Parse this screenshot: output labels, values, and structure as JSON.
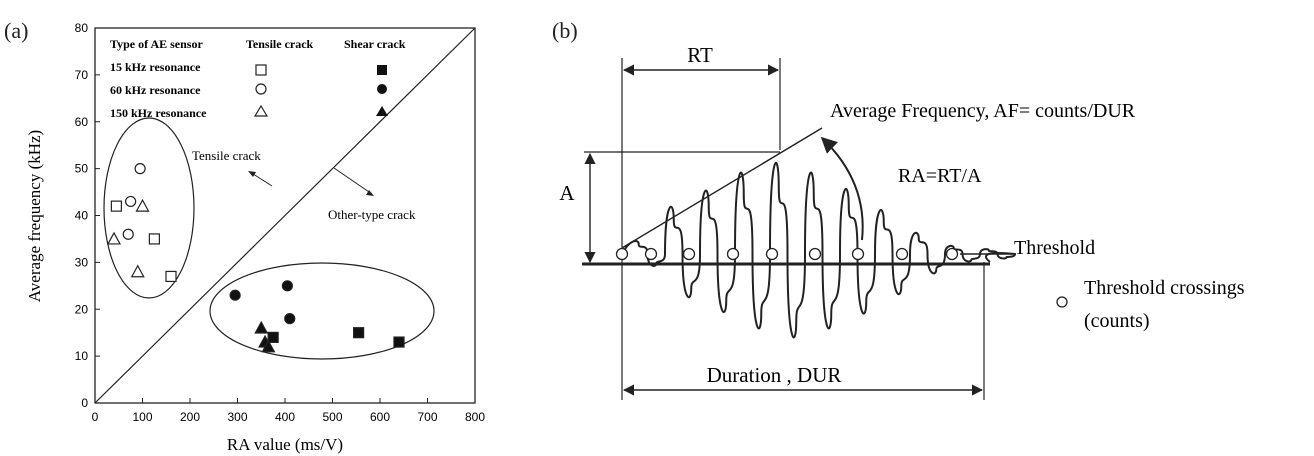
{
  "panel_a": {
    "label": "(a)",
    "legend": {
      "header_sensor": "Type of AE sensor",
      "header_tensile": "Tensile crack",
      "header_shear": "Shear crack",
      "rows": [
        "15 kHz resonance",
        "60 kHz resonance",
        "150 kHz resonance"
      ]
    },
    "annotations": {
      "tensile": "Tensile crack",
      "other": "Other-type crack"
    }
  },
  "panel_b": {
    "label": "(b)",
    "rt": "RT",
    "a": "A",
    "af": "Average Frequency, AF= counts/DUR",
    "ra": "RA=RT/A",
    "threshold": "Threshold",
    "crossings_line1": "Threshold crossings",
    "crossings_line2": "(counts)",
    "duration": "Duration , DUR"
  },
  "chart_data": {
    "type": "scatter",
    "xlabel": "RA value (ms/V)",
    "ylabel": "Average frequency (kHz)",
    "xlim": [
      0,
      800
    ],
    "ylim": [
      0,
      80
    ],
    "xticks": [
      0,
      100,
      200,
      300,
      400,
      500,
      600,
      700,
      800
    ],
    "yticks": [
      0,
      10,
      20,
      30,
      40,
      50,
      60,
      70,
      80
    ],
    "grid": false,
    "legend": "top-left",
    "divider": [
      [
        0,
        0
      ],
      [
        800,
        80
      ]
    ],
    "series": [
      {
        "sensor": "15 kHz resonance",
        "crack": "Tensile crack",
        "marker": "square",
        "filled": false,
        "points": [
          [
            45,
            42
          ],
          [
            125,
            35
          ],
          [
            160,
            27
          ]
        ]
      },
      {
        "sensor": "60 kHz resonance",
        "crack": "Tensile crack",
        "marker": "circle",
        "filled": false,
        "points": [
          [
            95,
            50
          ],
          [
            75,
            43
          ],
          [
            70,
            36
          ]
        ]
      },
      {
        "sensor": "150 kHz resonance",
        "crack": "Tensile crack",
        "marker": "triangle",
        "filled": false,
        "points": [
          [
            40,
            35
          ],
          [
            100,
            42
          ],
          [
            90,
            28
          ]
        ]
      },
      {
        "sensor": "15 kHz resonance",
        "crack": "Shear crack",
        "marker": "square",
        "filled": true,
        "points": [
          [
            375,
            14
          ],
          [
            555,
            15
          ],
          [
            640,
            13
          ]
        ]
      },
      {
        "sensor": "60 kHz resonance",
        "crack": "Shear crack",
        "marker": "circle",
        "filled": true,
        "points": [
          [
            295,
            23
          ],
          [
            405,
            25
          ],
          [
            410,
            18
          ]
        ]
      },
      {
        "sensor": "150 kHz resonance",
        "crack": "Shear crack",
        "marker": "triangle",
        "filled": true,
        "points": [
          [
            350,
            16
          ],
          [
            358,
            13
          ],
          [
            365,
            12
          ]
        ]
      }
    ]
  }
}
